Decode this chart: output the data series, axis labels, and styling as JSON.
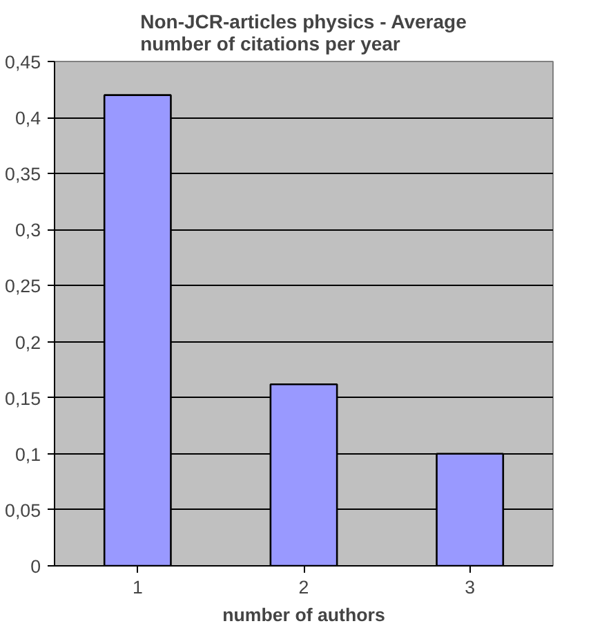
{
  "chart_data": {
    "type": "bar",
    "title": "Non-JCR-articles physics - Average number of citations per year",
    "xlabel": "number of authors",
    "categories": [
      "1",
      "2",
      "3"
    ],
    "values": [
      0.42,
      0.162,
      0.1
    ],
    "color": "#9999ff",
    "ylim": [
      0,
      0.45
    ],
    "yticks": [
      0,
      {
        "value": 0.05,
        "label": "0,05"
      },
      {
        "value": 0.1,
        "label": "0,1"
      },
      {
        "value": 0.15,
        "label": "0,15"
      },
      {
        "value": 0.2,
        "label": "0,2"
      },
      {
        "value": 0.25,
        "label": "0,25"
      },
      {
        "value": 0.3,
        "label": "0,3"
      },
      {
        "value": 0.35,
        "label": "0,35"
      },
      {
        "value": 0.4,
        "label": "0,4"
      },
      {
        "value": 0.45,
        "label": "0,45"
      }
    ],
    "grid": "y"
  }
}
